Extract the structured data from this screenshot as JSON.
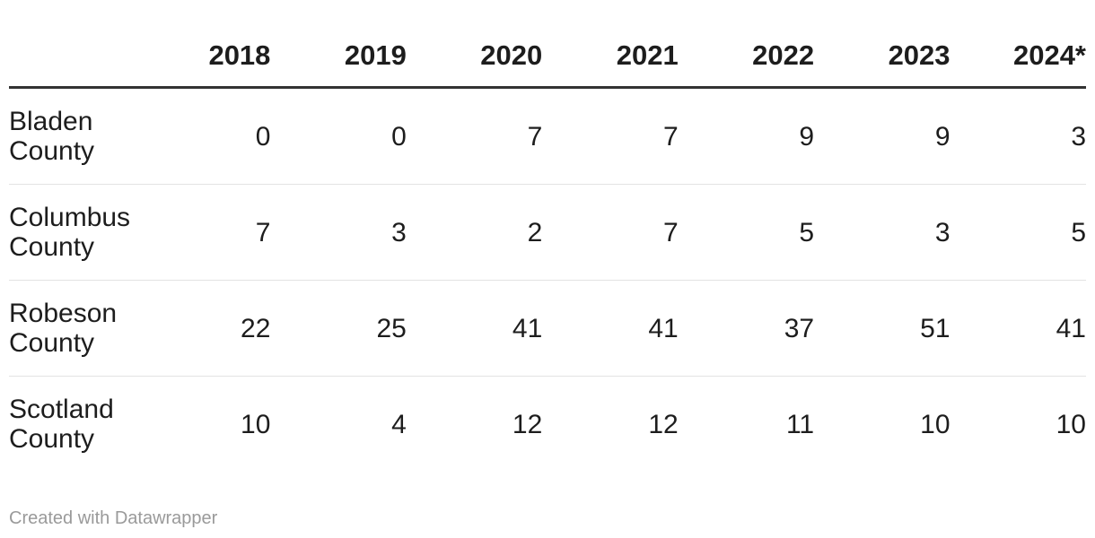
{
  "chart_data": {
    "type": "table",
    "columns": [
      "2018",
      "2019",
      "2020",
      "2021",
      "2022",
      "2023",
      "2024*"
    ],
    "rows": [
      {
        "label": "Bladen County",
        "values": [
          0,
          0,
          7,
          7,
          9,
          9,
          3
        ]
      },
      {
        "label": "Columbus County",
        "values": [
          7,
          3,
          2,
          7,
          5,
          3,
          5
        ]
      },
      {
        "label": "Robeson County",
        "values": [
          22,
          25,
          41,
          41,
          37,
          51,
          41
        ]
      },
      {
        "label": "Scotland County",
        "values": [
          10,
          4,
          12,
          12,
          11,
          10,
          10
        ]
      }
    ],
    "layout_hints": {
      "label_column_header": "",
      "value_alignment": "right",
      "header_rule": "thick",
      "row_dividers": true
    }
  },
  "footer": {
    "attribution": "Created with Datawrapper"
  },
  "colors": {
    "background": "#ffffff",
    "text": "#1d1d1d",
    "header_rule": "#333333",
    "row_divider": "#e3e3e3",
    "attribution_text": "#9a9a9a"
  }
}
